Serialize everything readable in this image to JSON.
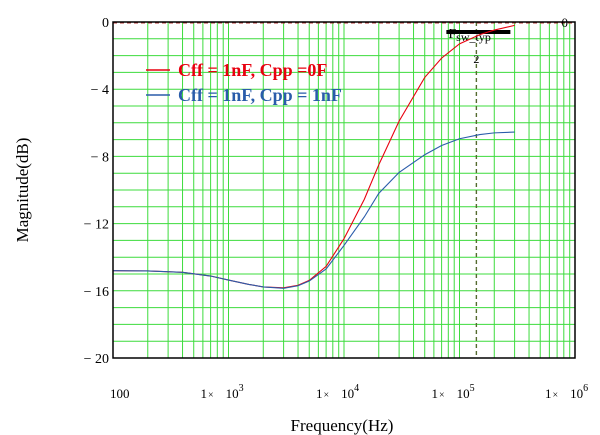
{
  "chart_data": {
    "type": "line",
    "title": "",
    "xlabel": "Frequency(Hz)",
    "ylabel": "Magnitude(dB)",
    "x_scale": "log",
    "xlim": [
      100,
      1000000
    ],
    "ylim": [
      -20,
      0
    ],
    "grid": true,
    "legend_position": "top-left",
    "x_tick_labels": [
      {
        "mant": "100",
        "exp": ""
      },
      {
        "mant": "1×10",
        "exp": "3"
      },
      {
        "mant": "1×10",
        "exp": "4"
      },
      {
        "mant": "1×10",
        "exp": "5"
      },
      {
        "mant": "1×10",
        "exp": "6"
      }
    ],
    "y_ticks": [
      0,
      -4,
      -8,
      -12,
      -16,
      -20
    ],
    "y_tick_labels": [
      "0",
      "− 4",
      "− 8",
      "− 12",
      "− 16",
      "− 20"
    ],
    "marker": {
      "x": 140000,
      "label": "F",
      "sub": "sw_typ",
      "index": "2",
      "right_value": "0",
      "color": "#000000"
    },
    "series": [
      {
        "name": "Cff = 1nF, Cpp =0F",
        "color": "#e8000f",
        "x": [
          100,
          200,
          400,
          700,
          1000,
          1500,
          2000,
          3000,
          4000,
          5000,
          7000,
          10000,
          15000,
          20000,
          30000,
          50000,
          70000,
          100000,
          150000,
          200000,
          300000
        ],
        "y": [
          -14.8,
          -14.82,
          -14.9,
          -15.12,
          -15.36,
          -15.62,
          -15.77,
          -15.82,
          -15.67,
          -15.38,
          -14.55,
          -12.9,
          -10.55,
          -8.5,
          -5.9,
          -3.3,
          -2.15,
          -1.3,
          -0.75,
          -0.48,
          -0.2
        ]
      },
      {
        "name": "Cff = 1nF, Cpp = 1nF",
        "color": "#2a5caa",
        "x": [
          100,
          200,
          400,
          700,
          1000,
          1500,
          2000,
          3000,
          4000,
          5000,
          7000,
          10000,
          15000,
          20000,
          30000,
          50000,
          70000,
          100000,
          150000,
          200000,
          300000
        ],
        "y": [
          -14.8,
          -14.82,
          -14.9,
          -15.12,
          -15.36,
          -15.62,
          -15.77,
          -15.85,
          -15.7,
          -15.42,
          -14.7,
          -13.3,
          -11.6,
          -10.2,
          -8.95,
          -7.9,
          -7.35,
          -6.95,
          -6.7,
          -6.6,
          -6.55
        ]
      }
    ]
  }
}
